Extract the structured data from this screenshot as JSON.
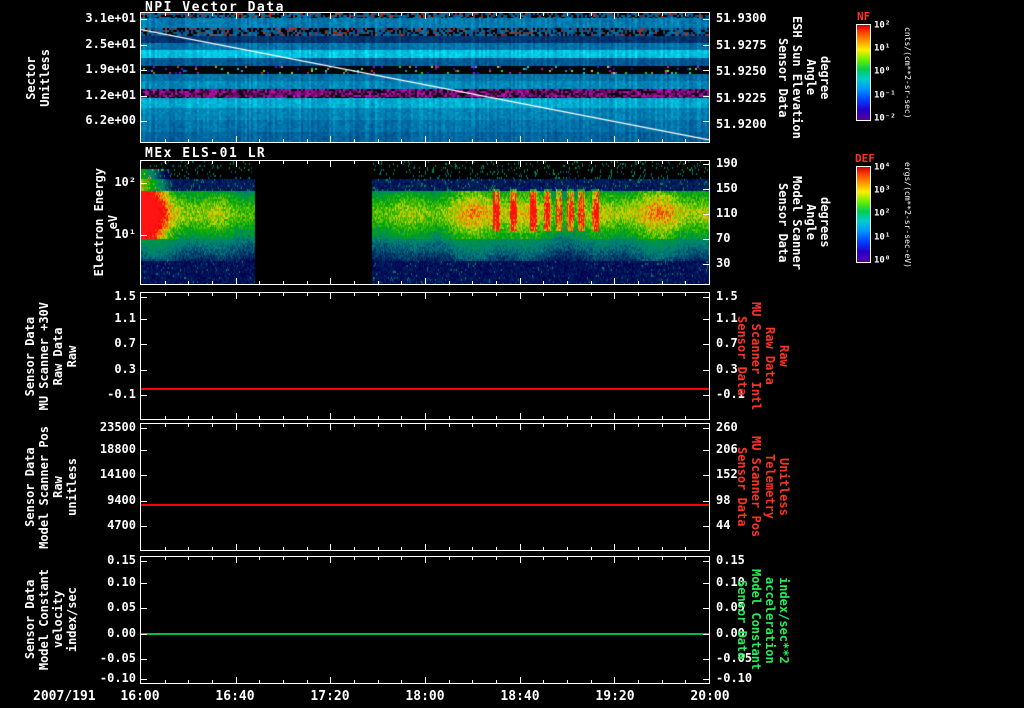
{
  "panels": {
    "npi": {
      "title": "NPI Vector Data",
      "left_label": [
        "Sector",
        "Unitless"
      ],
      "left_ticks": [
        "3.1e+01",
        "2.5e+01",
        "1.9e+01",
        "1.2e+01",
        "6.2e+00"
      ],
      "right_ticks": [
        "51.9300",
        "51.9275",
        "51.9250",
        "51.9225",
        "51.9200"
      ],
      "right_label": [
        "Sensor Data",
        "ESH Sun Elevation",
        "Angle",
        "degree"
      ],
      "colorbar": {
        "title": "NF",
        "ticks": [
          "10²",
          "10¹",
          "10⁰",
          "10⁻¹",
          "10⁻²"
        ],
        "units": "cnts/(cm**2-sr-sec)"
      }
    },
    "els": {
      "title": "MEx ELS-01 LR",
      "left_label": [
        "Electron Energy",
        "eV"
      ],
      "left_ticks": [
        "10²",
        "10¹"
      ],
      "right_ticks": [
        "190",
        "150",
        "110",
        "70",
        "30"
      ],
      "right_label": [
        "Sensor Data",
        "Model Scanner",
        "Angle",
        "degrees"
      ],
      "colorbar": {
        "title": "DEF",
        "ticks": [
          "10⁴",
          "10³",
          "10²",
          "10¹",
          "10⁰"
        ],
        "units": "ergs/(cm**2-sr-sec-eV)"
      }
    },
    "mu30v": {
      "left_label": [
        "Sensor Data",
        "MU Scanner +30V",
        "Raw Data",
        "Raw"
      ],
      "left_ticks": [
        "1.5",
        "1.1",
        "0.7",
        "0.3",
        "-0.1"
      ],
      "right_ticks": [
        "1.5",
        "1.1",
        "0.7",
        "0.3",
        "-0.1"
      ],
      "right_label": [
        "Sensor Data",
        "MU Scanner Intl",
        "Raw Data",
        "Raw"
      ]
    },
    "scanpos": {
      "left_label": [
        "Sensor Data",
        "Model Scanner Pos",
        "Raw",
        "unitless"
      ],
      "left_ticks": [
        "23500",
        "18800",
        "14100",
        "9400",
        "4700"
      ],
      "right_ticks": [
        "260",
        "206",
        "152",
        "98",
        "44"
      ],
      "right_label": [
        "Sensor Data",
        "MU Scanner Pos",
        "Telemetry",
        "Unitless"
      ]
    },
    "velocity": {
      "left_label": [
        "Sensor Data",
        "Model Constant",
        "velocity",
        "index/sec"
      ],
      "left_ticks": [
        "0.15",
        "0.10",
        "0.05",
        "0.00",
        "-0.05",
        "-0.10"
      ],
      "right_ticks": [
        "0.15",
        "0.10",
        "0.05",
        "0.00",
        "-0.05",
        "-0.10"
      ],
      "right_label": [
        "Sensor Data",
        "Model Constant",
        "acceleration",
        "index/sec**2"
      ]
    }
  },
  "xaxis": {
    "date_label": "2007/191",
    "ticks": [
      "16:00",
      "16:40",
      "17:20",
      "18:00",
      "18:40",
      "19:20",
      "20:00"
    ]
  },
  "chart_data": [
    {
      "type": "heatmap",
      "name": "npi_vector_data",
      "title": "NPI Vector Data",
      "x_date": "2007/191",
      "x_ticks": [
        "16:00",
        "16:40",
        "17:20",
        "18:00",
        "18:40",
        "19:20",
        "20:00"
      ],
      "ylabel": "Sector (Unitless)",
      "y_ticks": [
        31,
        25,
        19,
        12,
        6.2
      ],
      "z_label": "NF cnts/(cm**2-sr-sec)",
      "z_ticks": [
        "10²",
        "10¹",
        "10⁰",
        "10⁻¹",
        "10⁻²"
      ],
      "description": "Blue-dominated sector spectrogram with horizontal banding: speckled dark/red rows near top, dark navy band, bright cyan band, black band mid-panel, magenta/dark band below middle, uniform cyan-blue lower half",
      "bands": [
        {
          "f0": 0.0,
          "f1": 0.04,
          "b": 0.5,
          "mode": "speckle"
        },
        {
          "f0": 0.04,
          "f1": 0.12,
          "b": 0.58,
          "mode": "plain"
        },
        {
          "f0": 0.12,
          "f1": 0.18,
          "b": 0.5,
          "mode": "speckle"
        },
        {
          "f0": 0.18,
          "f1": 0.23,
          "b": 0.3,
          "mode": "plain"
        },
        {
          "f0": 0.23,
          "f1": 0.29,
          "b": 0.55,
          "mode": "plain"
        },
        {
          "f0": 0.29,
          "f1": 0.35,
          "b": 0.78,
          "mode": "plain"
        },
        {
          "f0": 0.35,
          "f1": 0.41,
          "b": 0.46,
          "mode": "plain"
        },
        {
          "f0": 0.41,
          "f1": 0.47,
          "b": 0.05,
          "mode": "blackspeckle"
        },
        {
          "f0": 0.47,
          "f1": 0.53,
          "b": 0.55,
          "mode": "plain"
        },
        {
          "f0": 0.53,
          "f1": 0.59,
          "b": 0.62,
          "mode": "plain"
        },
        {
          "f0": 0.59,
          "f1": 0.66,
          "b": 0.2,
          "mode": "magenta"
        },
        {
          "f0": 0.66,
          "f1": 0.74,
          "b": 0.72,
          "mode": "plain"
        },
        {
          "f0": 0.74,
          "f1": 0.83,
          "b": 0.6,
          "mode": "plain"
        },
        {
          "f0": 0.83,
          "f1": 0.92,
          "b": 0.55,
          "mode": "plain"
        },
        {
          "f0": 0.92,
          "f1": 1.0,
          "b": 0.5,
          "mode": "plain"
        }
      ],
      "overlay_line": {
        "label": "ESH Sun Elevation Angle (degree)",
        "start_value": 51.9291,
        "end_value": 51.9185,
        "axis_top": 51.9307,
        "axis_bottom": 51.9183,
        "right_ticks": [
          51.93,
          51.9275,
          51.925,
          51.9225,
          51.92
        ]
      }
    },
    {
      "type": "heatmap",
      "name": "mex_els_01_lr",
      "title": "MEx ELS-01 LR",
      "ylabel": "Electron Energy (eV)",
      "yscale": "log",
      "y_ticks": [
        100,
        10
      ],
      "right_axis": {
        "label": "Model Scanner Angle (degrees)",
        "ticks": [
          190,
          150,
          110,
          70,
          30
        ]
      },
      "z_label": "DEF ergs/(cm**2-sr-sec-eV)",
      "z_ticks": [
        "10⁴",
        "10³",
        "10²",
        "10¹",
        "10⁰"
      ],
      "data_gap_frac": [
        0.2,
        0.405
      ],
      "features": {
        "left_red_blob_end_frac": 0.055,
        "red_streak_fracs": [
          0.625,
          0.655,
          0.69,
          0.715,
          0.735,
          0.755,
          0.775,
          0.8
        ],
        "main_band_frac": [
          0.26,
          0.62
        ]
      },
      "description": "Electron energy spectrogram: intense red patch at start (~16:00-16:05), telemetry gap ~16:48-17:37, broad green-yellow flux band afterwards with red bursts ~18:30-19:10, dark speckled low-flux regions top and bottom"
    },
    {
      "type": "line",
      "name": "mu_scanner_plus30v_raw",
      "ylabel": "Sensor Data MU Scanner +30V Raw Data Raw",
      "ylim_left": [
        -0.5,
        1.5
      ],
      "yticks_left": [
        1.5,
        1.1,
        0.7,
        0.3,
        -0.1
      ],
      "right_label": "Sensor Data MU Scanner Intl Raw Data Raw",
      "yticks_right": [
        1.5,
        1.1,
        0.7,
        0.3,
        -0.1
      ],
      "series": [
        {
          "name": "MU Scanner +30V Raw",
          "color": "#ff0000",
          "constant_value": 0.0
        }
      ]
    },
    {
      "type": "line",
      "name": "model_scanner_pos_raw",
      "ylabel": "Sensor Data Model Scanner Pos Raw unitless",
      "ylim_left": [
        0,
        23500
      ],
      "yticks_left": [
        23500,
        18800,
        14100,
        9400,
        4700
      ],
      "right_label": "Sensor Data MU Scanner Pos Telemetry Unitless",
      "yticks_right": [
        260,
        206,
        152,
        98,
        44
      ],
      "series": [
        {
          "name": "Model Scanner Pos Raw",
          "color": "#ff0000",
          "constant_value": 8500
        }
      ]
    },
    {
      "type": "line",
      "name": "model_constant_velocity",
      "ylabel": "Sensor Data Model Constant velocity index/sec",
      "ylim_left": [
        -0.1,
        0.15
      ],
      "yticks_left": [
        0.15,
        0.1,
        0.05,
        0.0,
        -0.05,
        -0.1
      ],
      "right_label": "Sensor Data Model Constant acceleration index/sec**2",
      "yticks_right": [
        0.15,
        0.1,
        0.05,
        0.0,
        -0.05,
        -0.1
      ],
      "series": [
        {
          "name": "Model Constant velocity",
          "color": "#00bb44",
          "constant_value": 0.0
        }
      ]
    }
  ]
}
